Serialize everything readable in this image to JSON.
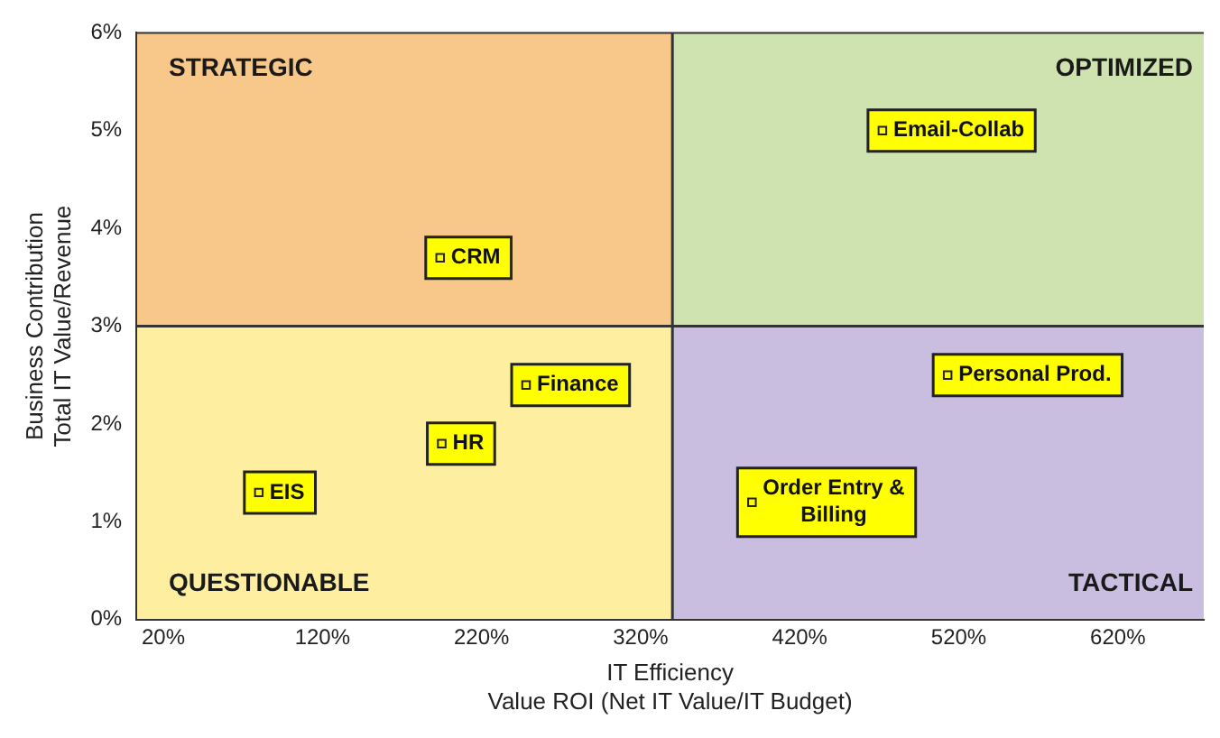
{
  "chart_data": {
    "type": "scatter",
    "xlabel": "IT Efficiency\nValue ROI (Net IT Value/IT Budget)",
    "ylabel": "Business Contribution\nTotal IT Value/Revenue",
    "xlim": [
      3,
      674
    ],
    "xticks": [
      {
        "value": 20,
        "label": "20%"
      },
      {
        "value": 120,
        "label": "120%"
      },
      {
        "value": 220,
        "label": "220%"
      },
      {
        "value": 320,
        "label": "320%"
      },
      {
        "value": 420,
        "label": "420%"
      },
      {
        "value": 520,
        "label": "520%"
      },
      {
        "value": 620,
        "label": "620%"
      }
    ],
    "ylim": [
      0,
      6
    ],
    "yticks": [
      {
        "value": 0,
        "label": "0%"
      },
      {
        "value": 1,
        "label": "1%"
      },
      {
        "value": 2,
        "label": "2%"
      },
      {
        "value": 3,
        "label": "3%"
      },
      {
        "value": 4,
        "label": "4%"
      },
      {
        "value": 5,
        "label": "5%"
      },
      {
        "value": 6,
        "label": "6%"
      }
    ],
    "series": [
      {
        "name": "CRM",
        "color": "#ffff00",
        "x": [
          194
        ],
        "values": [
          3.7
        ]
      },
      {
        "name": "Email-Collab",
        "color": "#ffff00",
        "x": [
          472
        ],
        "values": [
          5.0
        ]
      },
      {
        "name": "Finance",
        "color": "#ffff00",
        "x": [
          248
        ],
        "values": [
          2.4
        ]
      },
      {
        "name": "HR",
        "color": "#ffff00",
        "x": [
          195
        ],
        "values": [
          1.8
        ]
      },
      {
        "name": "EIS",
        "color": "#ffff00",
        "x": [
          80
        ],
        "values": [
          1.3
        ]
      },
      {
        "name": "Personal Prod.",
        "color": "#ffff00",
        "x": [
          513
        ],
        "values": [
          2.5
        ]
      },
      {
        "name": "Order Entry & Billing",
        "color": "#ffff00",
        "x": [
          390
        ],
        "values": [
          1.2
        ]
      }
    ],
    "ref_lines": [
      {
        "axis": "x",
        "value": 340,
        "color": "#333333"
      },
      {
        "axis": "y",
        "value": 3,
        "color": "#333333"
      }
    ],
    "annotations": [
      "STRATEGIC",
      "OPTIMIZED",
      "QUESTIONABLE",
      "TACTICAL"
    ],
    "marker": "square",
    "grid": false,
    "legend": false
  }
}
